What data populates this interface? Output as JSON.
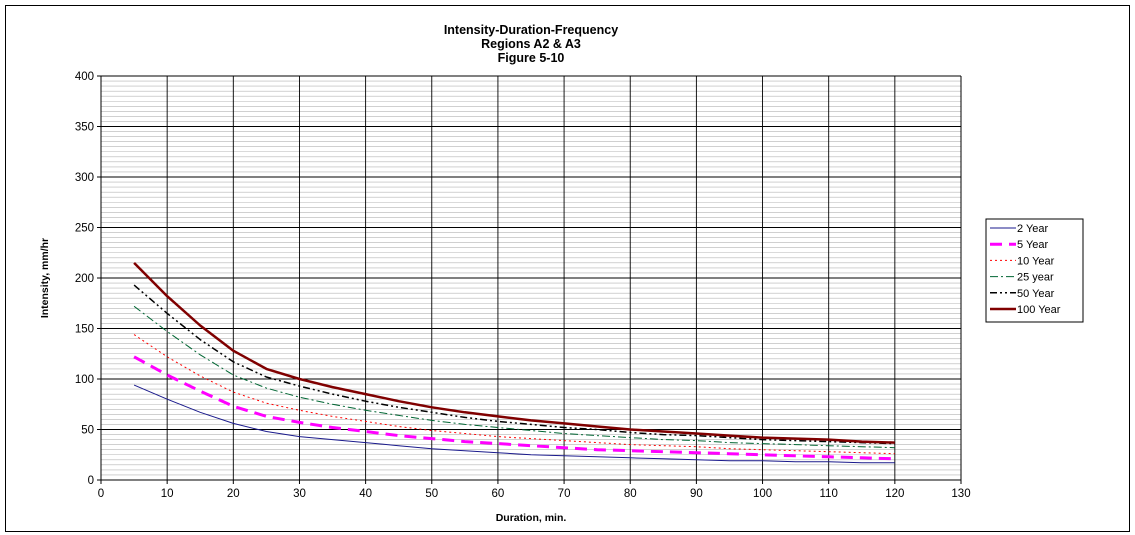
{
  "chart_data": {
    "type": "line",
    "title": [
      "Intensity-Duration-Frequency",
      "Regions A2 & A3",
      "Figure 5-10"
    ],
    "xlabel": "Duration, min.",
    "ylabel": "Intensity, mm/hr",
    "xlim": [
      0,
      130
    ],
    "ylim": [
      0,
      400
    ],
    "xticks": [
      "0",
      "10",
      "20",
      "30",
      "40",
      "50",
      "60",
      "70",
      "80",
      "90",
      "100",
      "110",
      "120",
      "130"
    ],
    "yticks": [
      "0",
      "50",
      "100",
      "150",
      "200",
      "250",
      "300",
      "350",
      "400"
    ],
    "grid": "on",
    "legend_position": "right",
    "x": [
      5,
      10,
      15,
      20,
      25,
      30,
      35,
      40,
      45,
      50,
      55,
      60,
      65,
      70,
      75,
      80,
      85,
      90,
      95,
      100,
      105,
      110,
      115,
      120
    ],
    "series": [
      {
        "name": "2 Year",
        "color": "#1a1a8c",
        "style": "solid-thin",
        "values": [
          94,
          80,
          67,
          56,
          48,
          43,
          40,
          37,
          34,
          31,
          29,
          27,
          25,
          24,
          23,
          22,
          21,
          20,
          19,
          19,
          18,
          18,
          17,
          17
        ]
      },
      {
        "name": "5 Year",
        "color": "#ff00ff",
        "style": "long-dash",
        "values": [
          122,
          104,
          88,
          73,
          63,
          57,
          52,
          48,
          44,
          41,
          38,
          36,
          34,
          32,
          30,
          29,
          28,
          27,
          26,
          25,
          24,
          23,
          22,
          21
        ]
      },
      {
        "name": "10 Year",
        "color": "#ff0000",
        "style": "dot",
        "values": [
          144,
          122,
          103,
          87,
          76,
          69,
          63,
          58,
          53,
          49,
          46,
          43,
          41,
          39,
          37,
          35,
          34,
          33,
          31,
          30,
          29,
          28,
          27,
          26
        ]
      },
      {
        "name": "25 year",
        "color": "#006633",
        "style": "dash-dot",
        "values": [
          172,
          147,
          124,
          104,
          91,
          82,
          75,
          69,
          64,
          59,
          55,
          52,
          49,
          46,
          44,
          42,
          40,
          39,
          37,
          36,
          35,
          34,
          33,
          32
        ]
      },
      {
        "name": "50 Year",
        "color": "#000000",
        "style": "dash-dot-dot",
        "values": [
          193,
          165,
          139,
          117,
          102,
          93,
          85,
          78,
          72,
          67,
          62,
          58,
          55,
          52,
          50,
          47,
          45,
          44,
          42,
          40,
          39,
          38,
          37,
          36
        ]
      },
      {
        "name": "100 Year",
        "color": "#800000",
        "style": "solid-thick",
        "values": [
          215,
          182,
          153,
          128,
          110,
          100,
          92,
          85,
          78,
          72,
          67,
          63,
          59,
          56,
          53,
          50,
          48,
          46,
          44,
          42,
          41,
          40,
          38,
          37
        ]
      }
    ]
  }
}
